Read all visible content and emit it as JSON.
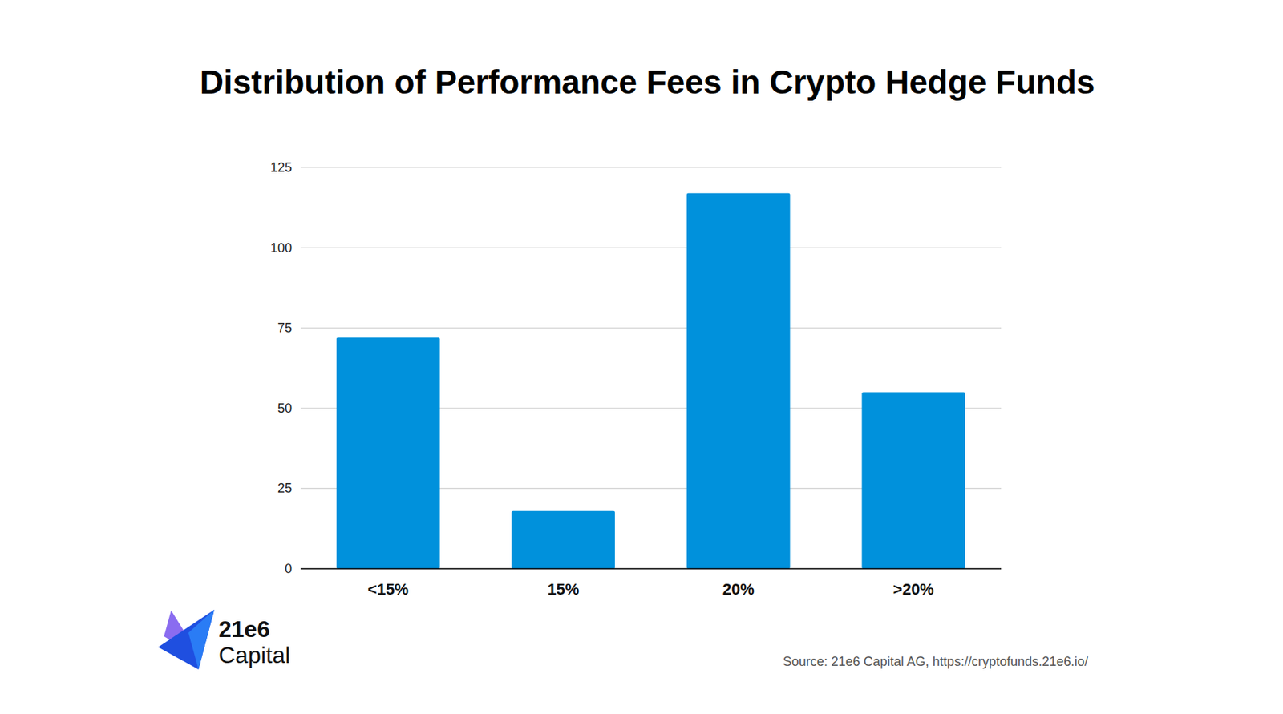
{
  "chart_data": {
    "type": "bar",
    "title": "Distribution of Performance Fees in Crypto Hedge Funds",
    "categories": [
      "<15%",
      "15%",
      "20%",
      ">20%"
    ],
    "values": [
      72,
      18,
      117,
      55
    ],
    "color": "#0091dc",
    "ylim": [
      0,
      125
    ],
    "yticks": [
      0,
      25,
      50,
      75,
      100,
      125
    ],
    "grid": true,
    "source": "Source: 21e6 Capital AG, https://cryptofunds.21e6.io/",
    "brand": [
      "21e6",
      "Capital"
    ]
  }
}
